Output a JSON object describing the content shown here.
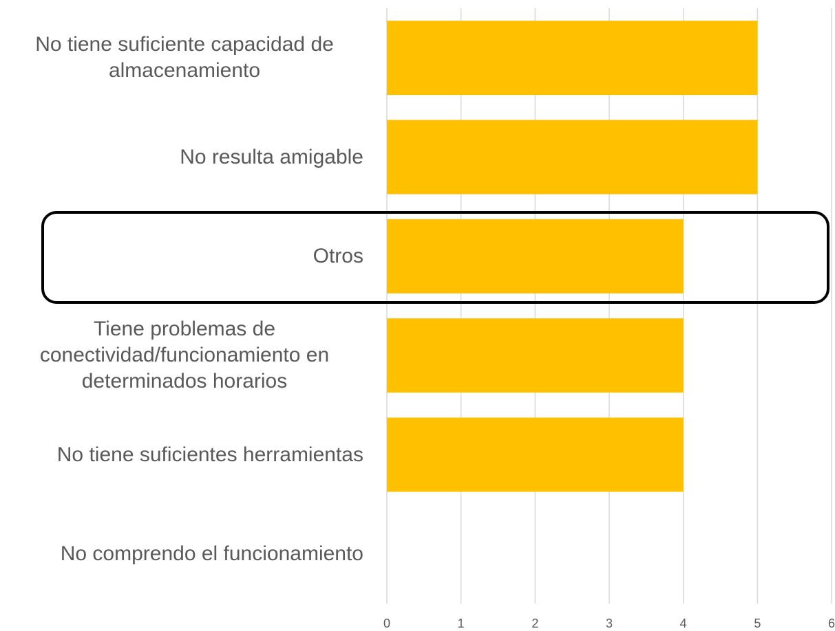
{
  "chart_data": {
    "type": "hbar",
    "categories": [
      "No tiene suficiente capacidad de almacenamiento",
      "No resulta amigable",
      "Otros",
      "Tiene problemas de conectividad/funcionamiento en determinados horarios",
      "No tiene suficientes herramientas",
      "No comprendo el funcionamiento"
    ],
    "values": [
      5,
      5,
      4,
      4,
      4,
      0
    ],
    "color": "#ffc000",
    "xlim": [
      0,
      6
    ],
    "xticks": [
      0,
      1,
      2,
      3,
      4,
      5,
      6
    ],
    "grid": true
  }
}
